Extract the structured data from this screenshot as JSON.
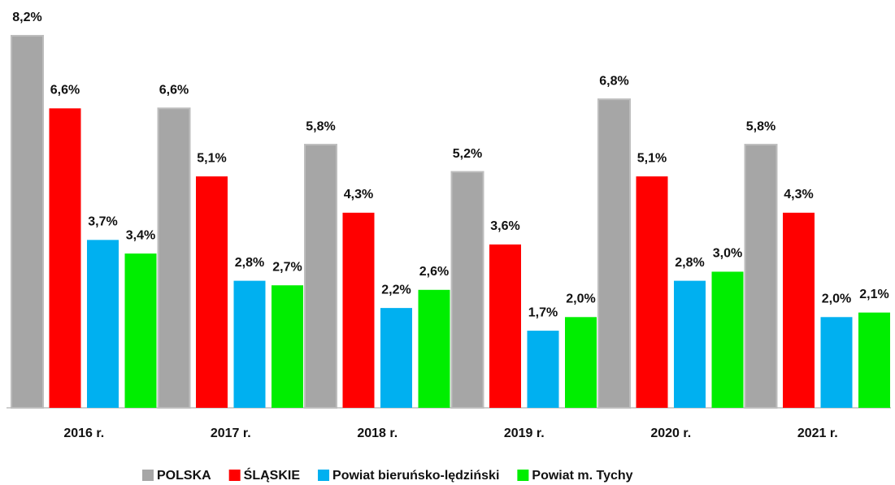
{
  "chart_data": {
    "type": "bar",
    "categories": [
      "2016 r.",
      "2017 r.",
      "2018 r.",
      "2019 r.",
      "2020 r.",
      "2021 r."
    ],
    "series": [
      {
        "name": "POLSKA",
        "color": "#a6a6a6",
        "values": [
          8.2,
          6.6,
          5.8,
          5.2,
          6.8,
          5.8
        ],
        "value_labels": [
          "8,2%",
          "6,6%",
          "5,8%",
          "5,2%",
          "6,8%",
          "5,8%"
        ]
      },
      {
        "name": "ŚLĄSKIE",
        "color": "#ff0000",
        "values": [
          6.6,
          5.1,
          4.3,
          3.6,
          5.1,
          4.3
        ],
        "value_labels": [
          "6,6%",
          "5,1%",
          "4,3%",
          "3,6%",
          "5,1%",
          "4,3%"
        ]
      },
      {
        "name": "Powiat bieruńsko-lędziński",
        "color": "#00b0f0",
        "values": [
          3.7,
          2.8,
          2.2,
          1.7,
          2.8,
          2.0
        ],
        "value_labels": [
          "3,7%",
          "2,8%",
          "2,2%",
          "1,7%",
          "2,8%",
          "2,0%"
        ]
      },
      {
        "name": "Powiat m. Tychy",
        "color": "#00ee00",
        "values": [
          3.4,
          2.7,
          2.6,
          2.0,
          3.0,
          2.1
        ],
        "value_labels": [
          "3,4%",
          "2,7%",
          "2,6%",
          "2,0%",
          "3,0%",
          "2,1%"
        ]
      }
    ],
    "legend": "bottom"
  }
}
